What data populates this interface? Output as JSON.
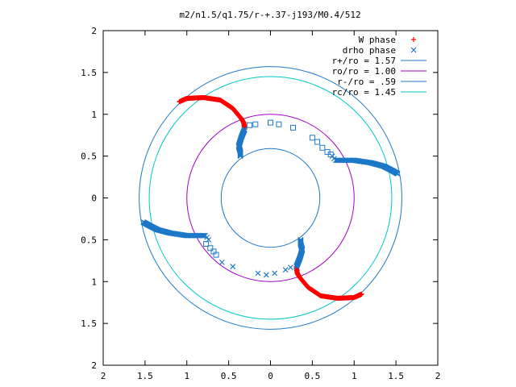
{
  "chart_data": {
    "type": "scatter",
    "title": "m2/n1.5/q1.75/r-+.37-j193/M0.4/512",
    "xlim": [
      -2,
      2
    ],
    "ylim": [
      -2,
      2
    ],
    "x_ticks": [
      -2,
      -1.5,
      -1,
      -0.5,
      0,
      0.5,
      1,
      1.5,
      2
    ],
    "y_ticks": [
      -2,
      -1.5,
      -1,
      -0.5,
      0,
      0.5,
      1,
      1.5,
      2
    ],
    "x_tick_labels": [
      "2",
      "1.5",
      "1",
      "0.5",
      "0",
      "0.5",
      "1",
      "1.5",
      "2"
    ],
    "y_tick_labels": [
      "2",
      "1.5",
      "1",
      "0.5",
      "0",
      "0.5",
      "1",
      "1.5",
      "2"
    ],
    "grid": false,
    "legend_position": "top-right",
    "circles": [
      {
        "name": "r+/ro = 1.57",
        "radius": 1.57,
        "color": "#1e78c8"
      },
      {
        "name": "ro/ro = 1.00",
        "radius": 1.0,
        "color": "#a000c8"
      },
      {
        "name": "r-/ro = .59",
        "radius": 0.59,
        "color": "#1e78c8"
      },
      {
        "name": "rc/ro = 1.45",
        "radius": 1.45,
        "color": "#00c8c8"
      }
    ],
    "series": [
      {
        "name": "W phase",
        "marker": "+",
        "color": "#ff0000",
        "anchors": [
          [
            -1.09,
            1.15
          ],
          [
            -1.0,
            1.19
          ],
          [
            -0.8,
            1.2
          ],
          [
            -0.6,
            1.17
          ],
          [
            -0.45,
            1.07
          ],
          [
            -0.35,
            0.95
          ],
          [
            -0.32,
            0.9
          ],
          [
            -0.31,
            0.82
          ]
        ],
        "anchors_rotated": [
          [
            1.09,
            -1.15
          ],
          [
            1.0,
            -1.19
          ],
          [
            0.8,
            -1.2
          ],
          [
            0.6,
            -1.17
          ],
          [
            0.45,
            -1.07
          ],
          [
            0.35,
            -0.95
          ],
          [
            0.32,
            -0.9
          ],
          [
            0.31,
            -0.82
          ]
        ]
      },
      {
        "name": "drho phase",
        "marker": "x",
        "color": "#1e78c8",
        "anchors": [
          [
            -0.31,
            0.82
          ],
          [
            -0.35,
            0.72
          ],
          [
            -0.38,
            0.62
          ],
          [
            -0.36,
            0.55
          ],
          [
            -0.36,
            0.5
          ]
        ],
        "anchors_rotated": [
          [
            0.31,
            -0.82
          ],
          [
            0.35,
            -0.72
          ],
          [
            0.38,
            -0.62
          ],
          [
            0.36,
            -0.55
          ],
          [
            0.36,
            -0.5
          ]
        ],
        "arm_outer": [
          [
            0.78,
            0.45
          ],
          [
            1.0,
            0.45
          ],
          [
            1.2,
            0.42
          ],
          [
            1.35,
            0.38
          ],
          [
            1.45,
            0.33
          ],
          [
            1.52,
            0.29
          ]
        ],
        "arm_outer_rotated": [
          [
            -0.78,
            -0.45
          ],
          [
            -1.0,
            -0.45
          ],
          [
            -1.2,
            -0.42
          ],
          [
            -1.35,
            -0.38
          ],
          [
            -1.45,
            -0.33
          ],
          [
            -1.52,
            -0.29
          ]
        ]
      }
    ],
    "square_markers": {
      "color": "#1e78c8",
      "points": [
        [
          -0.25,
          0.87
        ],
        [
          -0.18,
          0.88
        ],
        [
          0.0,
          0.9
        ],
        [
          0.1,
          0.88
        ],
        [
          0.27,
          0.84
        ],
        [
          0.5,
          0.72
        ],
        [
          0.56,
          0.67
        ],
        [
          0.62,
          0.6
        ],
        [
          0.68,
          0.55
        ],
        [
          0.72,
          0.52
        ],
        [
          -0.77,
          -0.55
        ],
        [
          -0.72,
          -0.6
        ],
        [
          -0.68,
          -0.64
        ],
        [
          -0.65,
          -0.68
        ]
      ]
    },
    "x_markers": {
      "color": "#1e78c8",
      "points": [
        [
          0.74,
          0.5
        ],
        [
          0.76,
          0.47
        ],
        [
          -0.58,
          -0.77
        ],
        [
          -0.45,
          -0.82
        ],
        [
          -0.15,
          -0.9
        ],
        [
          -0.05,
          -0.92
        ],
        [
          0.05,
          -0.9
        ],
        [
          0.18,
          -0.86
        ],
        [
          0.24,
          -0.83
        ],
        [
          -0.74,
          -0.5
        ],
        [
          -0.76,
          -0.47
        ]
      ]
    }
  },
  "legend": {
    "entries": [
      {
        "label": "W phase",
        "marker": "+",
        "color": "#ff0000"
      },
      {
        "label": "drho phase",
        "marker": "x",
        "color": "#1e78c8"
      },
      {
        "label": "r+/ro = 1.57",
        "line": true,
        "color": "#1e78c8"
      },
      {
        "label": "ro/ro = 1.00",
        "line": true,
        "color": "#a000c8"
      },
      {
        "label": "r-/ro = .59",
        "line": true,
        "color": "#1e78c8"
      },
      {
        "label": "rc/ro = 1.45",
        "line": true,
        "color": "#00c8c8"
      }
    ]
  }
}
